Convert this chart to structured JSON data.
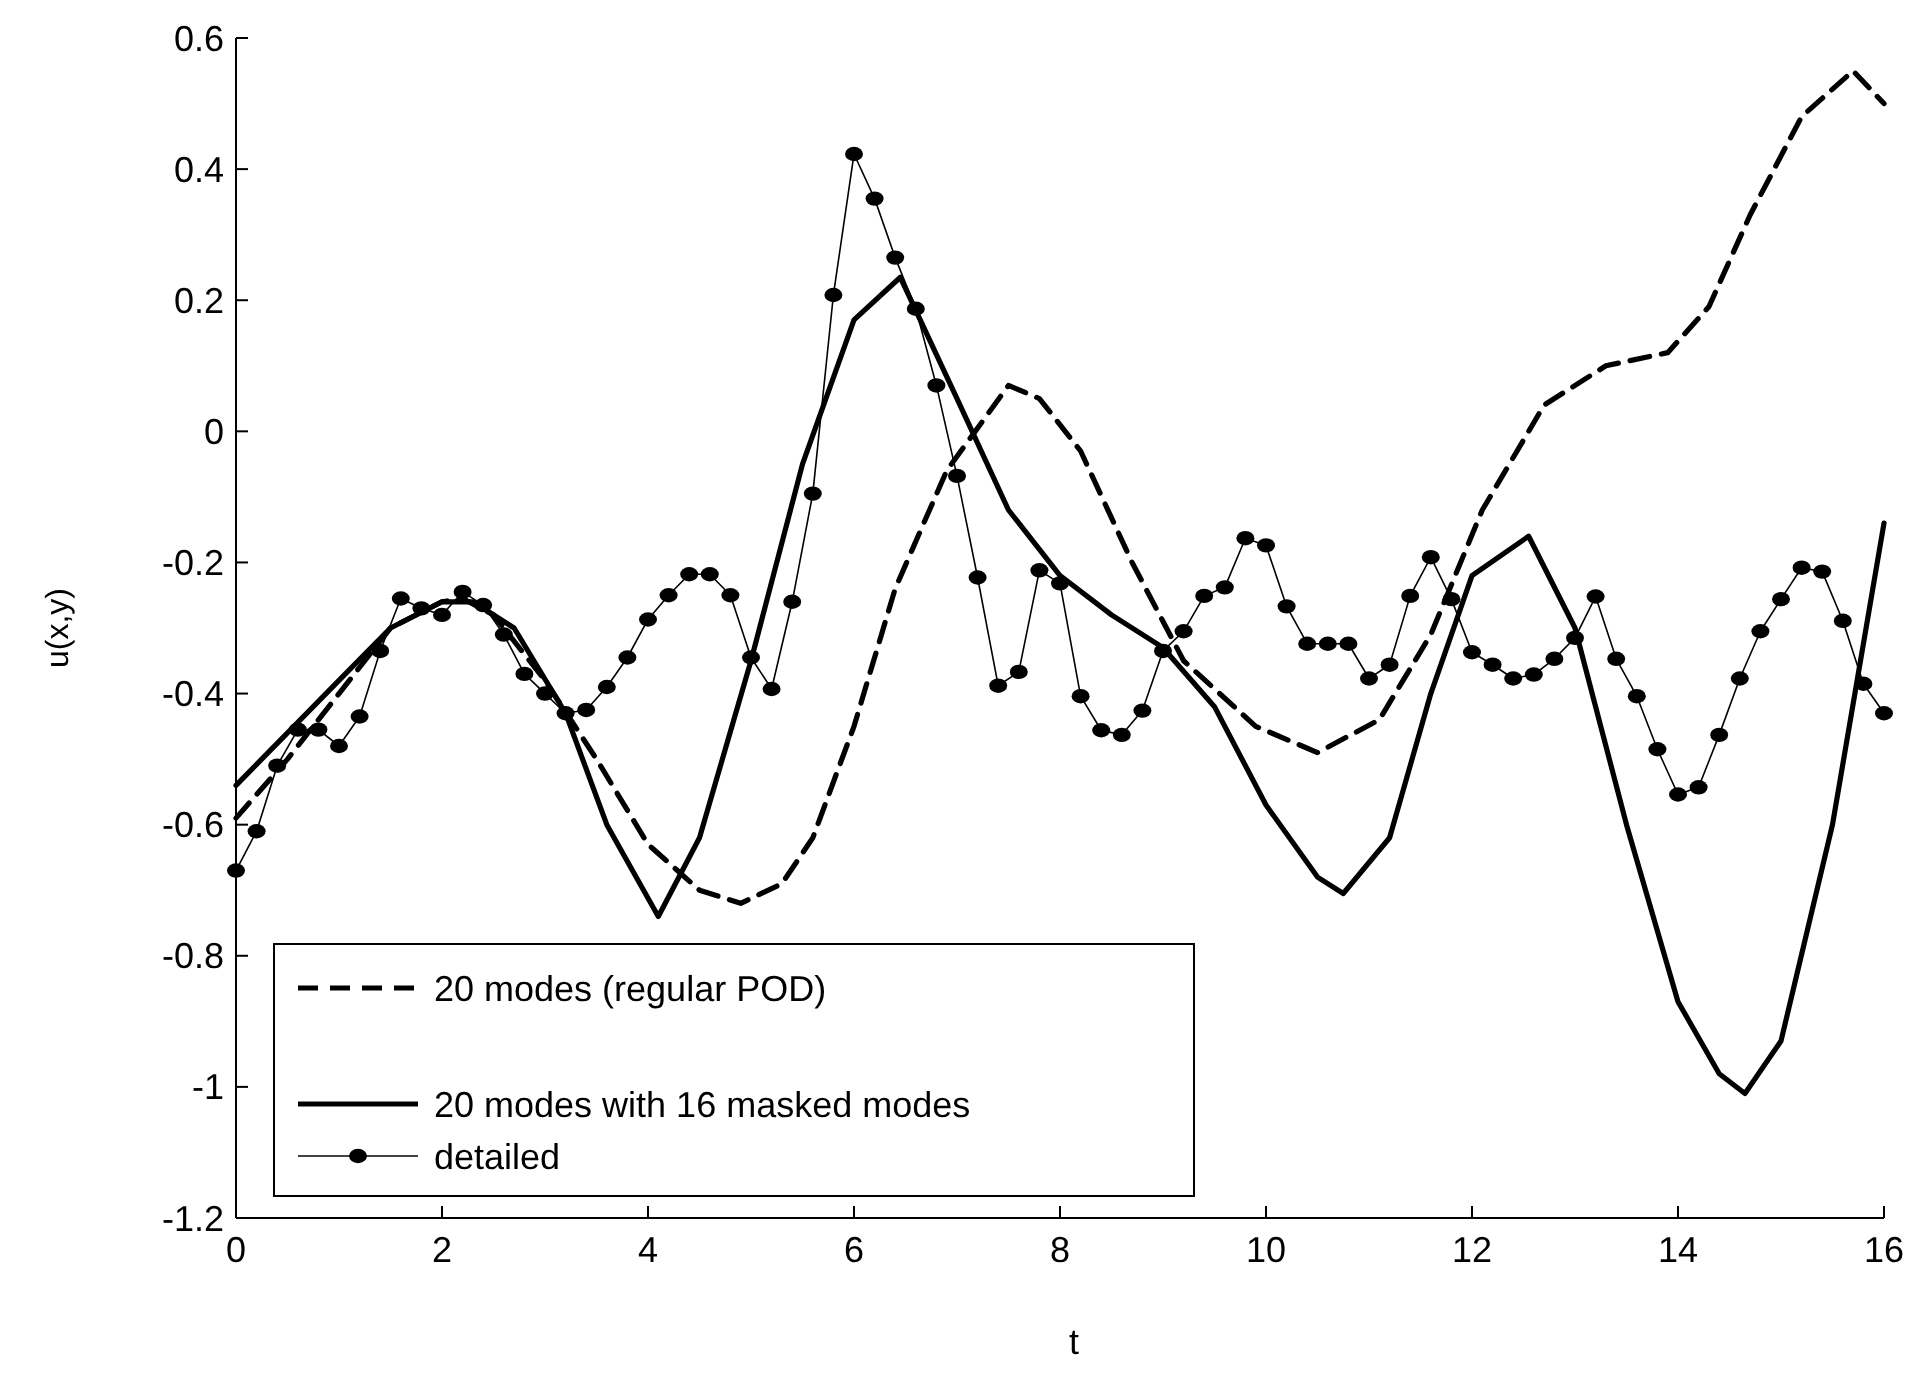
{
  "chart_data": {
    "type": "line",
    "xlabel": "t",
    "ylabel": "u(x,y)",
    "xlim": [
      0,
      16
    ],
    "ylim": [
      -1.2,
      0.6
    ],
    "xticks": [
      0,
      2,
      4,
      6,
      8,
      10,
      12,
      14,
      16
    ],
    "yticks": [
      -1.2,
      -1,
      -0.8,
      -0.6,
      -0.4,
      -0.2,
      0,
      0.2,
      0.4,
      0.6
    ],
    "grid": false,
    "legend": "bottom left",
    "series": [
      {
        "name": "20 modes (regular POD)",
        "color": "#000000",
        "line_style": "dashed",
        "marker": "none",
        "x": [
          0,
          0.5,
          1,
          1.5,
          2,
          2.2,
          2.5,
          3,
          3.5,
          4,
          4.5,
          4.9,
          5.3,
          5.6,
          6,
          6.4,
          6.9,
          7.5,
          7.8,
          8.2,
          8.7,
          9.2,
          9.9,
          10.5,
          11.1,
          11.6,
          12.1,
          12.7,
          13.3,
          13.9,
          14.3,
          14.7,
          15.2,
          15.7,
          16
        ],
        "values": [
          -0.59,
          -0.5,
          -0.4,
          -0.3,
          -0.26,
          -0.255,
          -0.28,
          -0.38,
          -0.5,
          -0.63,
          -0.7,
          -0.72,
          -0.69,
          -0.62,
          -0.45,
          -0.24,
          -0.06,
          0.07,
          0.05,
          -0.03,
          -0.2,
          -0.35,
          -0.45,
          -0.49,
          -0.44,
          -0.31,
          -0.12,
          0.04,
          0.1,
          0.12,
          0.19,
          0.33,
          0.48,
          0.55,
          0.5
        ]
      },
      {
        "name": "20 modes with 16 masked modes",
        "color": "#000000",
        "line_style": "solid",
        "marker": "none",
        "x": [
          0,
          0.5,
          1,
          1.5,
          2,
          2.3,
          2.7,
          3.2,
          3.6,
          4.1,
          4.5,
          5,
          5.5,
          6,
          6.45,
          7,
          7.5,
          8,
          8.5,
          9,
          9.5,
          10,
          10.5,
          10.75,
          11.2,
          11.6,
          12,
          12.55,
          13,
          13.5,
          14,
          14.4,
          14.65,
          15,
          15.5,
          16
        ],
        "values": [
          -0.54,
          -0.46,
          -0.38,
          -0.3,
          -0.26,
          -0.26,
          -0.3,
          -0.43,
          -0.6,
          -0.74,
          -0.62,
          -0.35,
          -0.05,
          0.17,
          0.235,
          0.05,
          -0.12,
          -0.22,
          -0.28,
          -0.33,
          -0.42,
          -0.57,
          -0.68,
          -0.705,
          -0.62,
          -0.4,
          -0.22,
          -0.16,
          -0.3,
          -0.6,
          -0.87,
          -0.98,
          -1.01,
          -0.93,
          -0.6,
          -0.14
        ]
      },
      {
        "name": "detailed",
        "color": "#000000",
        "line_style": "solid",
        "marker": "circle",
        "x": [
          0,
          0.2,
          0.4,
          0.6,
          0.8,
          1,
          1.2,
          1.4,
          1.6,
          1.8,
          2,
          2.2,
          2.4,
          2.6,
          2.8,
          3,
          3.2,
          3.4,
          3.6,
          3.8,
          4,
          4.2,
          4.4,
          4.6,
          4.8,
          5,
          5.2,
          5.4,
          5.6,
          5.8,
          6,
          6.2,
          6.4,
          6.6,
          6.8,
          7,
          7.2,
          7.4,
          7.6,
          7.8,
          8,
          8.2,
          8.4,
          8.6,
          8.8,
          9,
          9.2,
          9.4,
          9.6,
          9.8,
          10,
          10.2,
          10.4,
          10.6,
          10.8,
          11,
          11.2,
          11.4,
          11.6,
          11.8,
          12,
          12.2,
          12.4,
          12.6,
          12.8,
          13,
          13.2,
          13.4,
          13.6,
          13.8,
          14,
          14.2,
          14.4,
          14.6,
          14.8,
          15,
          15.2,
          15.4,
          15.6,
          15.8,
          16
        ],
        "values": [
          -0.67,
          -0.61,
          -0.51,
          -0.455,
          -0.455,
          -0.48,
          -0.435,
          -0.335,
          -0.255,
          -0.27,
          -0.28,
          -0.245,
          -0.265,
          -0.31,
          -0.37,
          -0.4,
          -0.43,
          -0.425,
          -0.39,
          -0.345,
          -0.287,
          -0.25,
          -0.218,
          -0.218,
          -0.25,
          -0.345,
          -0.393,
          -0.26,
          -0.095,
          0.208,
          0.423,
          0.355,
          0.265,
          0.187,
          0.07,
          -0.068,
          -0.223,
          -0.388,
          -0.367,
          -0.212,
          -0.232,
          -0.404,
          -0.456,
          -0.463,
          -0.426,
          -0.335,
          -0.305,
          -0.251,
          -0.238,
          -0.163,
          -0.174,
          -0.267,
          -0.324,
          -0.324,
          -0.324,
          -0.377,
          -0.356,
          -0.251,
          -0.192,
          -0.256,
          -0.337,
          -0.356,
          -0.377,
          -0.371,
          -0.347,
          -0.315,
          -0.252,
          -0.347,
          -0.404,
          -0.485,
          -0.554,
          -0.543,
          -0.463,
          -0.377,
          -0.305,
          -0.256,
          -0.208,
          -0.214,
          -0.289,
          -0.385,
          -0.43
        ]
      }
    ]
  }
}
